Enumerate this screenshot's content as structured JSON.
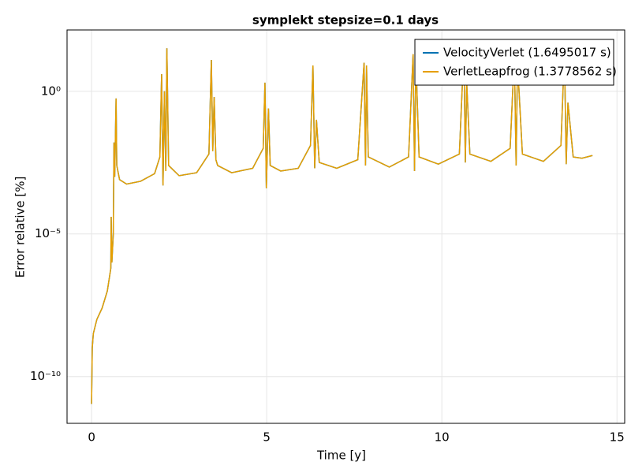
{
  "chart_data": {
    "type": "line",
    "title": "symplekt stepsize=0.1 days",
    "x_label": "Time [y]",
    "y_label": "Error relative [%]",
    "yscale": "log",
    "grid": true,
    "legend": "upper right",
    "xlim": [
      -0.7,
      15.22
    ],
    "ylim": [
      2.3e-12,
      141
    ],
    "xticks": [
      0,
      5,
      10,
      15
    ],
    "yticks": [
      {
        "value": 1e-10,
        "label": "10⁻¹⁰"
      },
      {
        "value": 1e-05,
        "label": "10⁻⁵"
      },
      {
        "value": 1,
        "label": "10⁰"
      }
    ],
    "x": [
      0,
      0.02,
      0.05,
      0.15,
      0.3,
      0.45,
      0.55,
      0.56,
      0.58,
      0.62,
      0.64,
      0.66,
      0.7,
      0.72,
      0.8,
      1.0,
      1.4,
      1.8,
      1.95,
      2.0,
      2.04,
      2.08,
      2.12,
      2.15,
      2.2,
      2.5,
      3.0,
      3.35,
      3.42,
      3.46,
      3.5,
      3.55,
      3.6,
      4.0,
      4.6,
      4.9,
      4.95,
      4.99,
      5.05,
      5.1,
      5.4,
      5.9,
      6.25,
      6.32,
      6.37,
      6.42,
      6.5,
      7.0,
      7.6,
      7.78,
      7.82,
      7.85,
      7.9,
      8.5,
      9.05,
      9.18,
      9.22,
      9.26,
      9.35,
      9.9,
      10.5,
      10.63,
      10.67,
      10.71,
      10.8,
      11.4,
      11.95,
      12.07,
      12.12,
      12.16,
      12.3,
      12.9,
      13.4,
      13.5,
      13.55,
      13.6,
      13.75,
      14.0,
      14.3
    ],
    "series": [
      {
        "name": "VelocityVerlet (1.6495017 s)",
        "color": "#0072b2",
        "values": [
          1.1e-11,
          1e-09,
          3.2e-09,
          1e-08,
          2.5e-08,
          1e-07,
          6.3e-07,
          4e-05,
          1e-06,
          1e-05,
          0.016,
          0.001,
          0.56,
          0.0025,
          0.0008,
          0.00056,
          0.0007,
          0.0013,
          0.005,
          4,
          0.0005,
          1,
          0.0016,
          32,
          0.0025,
          0.0011,
          0.0014,
          0.0063,
          12.6,
          0.008,
          0.63,
          0.004,
          0.0025,
          0.0014,
          0.002,
          0.01,
          2,
          0.0004,
          0.25,
          0.0025,
          0.0016,
          0.002,
          0.0126,
          8,
          0.002,
          0.1,
          0.0032,
          0.002,
          0.004,
          10,
          0.0025,
          8,
          0.005,
          0.0022,
          0.005,
          20,
          0.0016,
          12.6,
          0.005,
          0.0028,
          0.0063,
          32,
          0.0032,
          2,
          0.0063,
          0.0035,
          0.01,
          20,
          0.0025,
          10,
          0.0063,
          0.0035,
          0.0126,
          25,
          0.0028,
          0.4,
          0.005,
          0.0045,
          0.0056
        ]
      },
      {
        "name": "VerletLeapfrog (1.3778562 s)",
        "color": "#e69f00",
        "values": [
          1.1e-11,
          1e-09,
          3.2e-09,
          1e-08,
          2.5e-08,
          1e-07,
          6.3e-07,
          4e-05,
          1e-06,
          1e-05,
          0.016,
          0.001,
          0.56,
          0.0025,
          0.0008,
          0.00056,
          0.0007,
          0.0013,
          0.005,
          4,
          0.0005,
          1,
          0.0016,
          32,
          0.0025,
          0.0011,
          0.0014,
          0.0063,
          12.6,
          0.008,
          0.63,
          0.004,
          0.0025,
          0.0014,
          0.002,
          0.01,
          2,
          0.0004,
          0.25,
          0.0025,
          0.0016,
          0.002,
          0.0126,
          8,
          0.002,
          0.1,
          0.0032,
          0.002,
          0.004,
          10,
          0.0025,
          8,
          0.005,
          0.0022,
          0.005,
          20,
          0.0016,
          12.6,
          0.005,
          0.0028,
          0.0063,
          32,
          0.0032,
          2,
          0.0063,
          0.0035,
          0.01,
          20,
          0.0025,
          10,
          0.0063,
          0.0035,
          0.0126,
          25,
          0.0028,
          0.4,
          0.005,
          0.0045,
          0.0056
        ]
      }
    ]
  }
}
